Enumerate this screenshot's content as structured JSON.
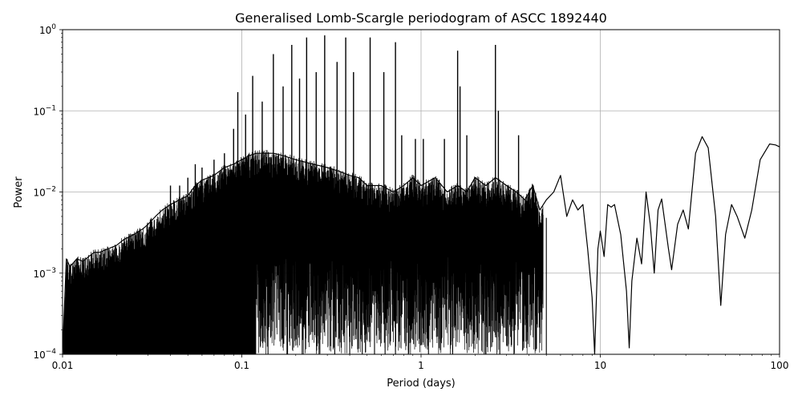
{
  "chart_data": {
    "type": "line",
    "title": "Generalised Lomb-Scargle periodogram of ASCC 1892440",
    "xlabel": "Period (days)",
    "ylabel": "Power",
    "xscale": "log",
    "yscale": "log",
    "xlim": [
      0.01,
      100
    ],
    "ylim": [
      0.0001,
      1
    ],
    "grid": true,
    "line_color": "#000000",
    "x_ticks": [
      {
        "value": 0.01,
        "label": "0.01"
      },
      {
        "value": 0.1,
        "label": "0.1"
      },
      {
        "value": 1,
        "label": "1"
      },
      {
        "value": 10,
        "label": "10"
      },
      {
        "value": 100,
        "label": "100"
      }
    ],
    "y_ticks": [
      {
        "value": 0.0001,
        "base": "10",
        "exp": "−4"
      },
      {
        "value": 0.001,
        "base": "10",
        "exp": "−3"
      },
      {
        "value": 0.01,
        "base": "10",
        "exp": "−2"
      },
      {
        "value": 0.1,
        "base": "10",
        "exp": "−1"
      },
      {
        "value": 1,
        "base": "10",
        "exp": "0"
      }
    ],
    "series": [
      {
        "points": [
          [
            0.01,
            0.0001
          ],
          [
            0.0105,
            0.0015
          ],
          [
            0.011,
            0.0012
          ],
          [
            0.012,
            0.0015
          ],
          [
            0.013,
            0.0014
          ],
          [
            0.014,
            0.0016
          ],
          [
            0.015,
            0.0018
          ],
          [
            0.016,
            0.0018
          ],
          [
            0.018,
            0.002
          ],
          [
            0.02,
            0.0022
          ],
          [
            0.022,
            0.0026
          ],
          [
            0.025,
            0.003
          ],
          [
            0.028,
            0.0035
          ],
          [
            0.03,
            0.004
          ],
          [
            0.033,
            0.005
          ],
          [
            0.036,
            0.006
          ],
          [
            0.04,
            0.007
          ],
          [
            0.045,
            0.008
          ],
          [
            0.05,
            0.009
          ],
          [
            0.055,
            0.012
          ],
          [
            0.06,
            0.014
          ],
          [
            0.065,
            0.015
          ],
          [
            0.07,
            0.016
          ],
          [
            0.075,
            0.018
          ],
          [
            0.08,
            0.02
          ],
          [
            0.09,
            0.022
          ],
          [
            0.1,
            0.025
          ],
          [
            0.11,
            0.028
          ],
          [
            0.12,
            0.03
          ],
          [
            0.13,
            0.03
          ],
          [
            0.15,
            0.03
          ],
          [
            0.17,
            0.028
          ],
          [
            0.2,
            0.025
          ],
          [
            0.25,
            0.022
          ],
          [
            0.3,
            0.02
          ],
          [
            0.35,
            0.018
          ],
          [
            0.4,
            0.016
          ],
          [
            0.45,
            0.015
          ],
          [
            0.5,
            0.012
          ],
          [
            0.6,
            0.012
          ],
          [
            0.7,
            0.01
          ],
          [
            0.8,
            0.012
          ],
          [
            0.9,
            0.015
          ],
          [
            1.0,
            0.012
          ],
          [
            1.2,
            0.015
          ],
          [
            1.4,
            0.01
          ],
          [
            1.6,
            0.012
          ],
          [
            1.8,
            0.01
          ],
          [
            2.0,
            0.015
          ],
          [
            2.3,
            0.012
          ],
          [
            2.6,
            0.015
          ],
          [
            3.0,
            0.012
          ],
          [
            3.4,
            0.01
          ],
          [
            3.8,
            0.008
          ],
          [
            4.2,
            0.012
          ],
          [
            4.6,
            0.006
          ],
          [
            5.0,
            0.008
          ],
          [
            5.5,
            0.01
          ],
          [
            6.0,
            0.016
          ],
          [
            6.5,
            0.005
          ],
          [
            7.0,
            0.008
          ],
          [
            7.5,
            0.006
          ],
          [
            8.0,
            0.007
          ],
          [
            8.5,
            0.002
          ],
          [
            9.0,
            0.0005
          ],
          [
            9.3,
            0.0001
          ],
          [
            9.7,
            0.002
          ],
          [
            10.0,
            0.0033
          ],
          [
            10.5,
            0.0016
          ],
          [
            11.0,
            0.007
          ],
          [
            11.5,
            0.0065
          ],
          [
            12.0,
            0.007
          ],
          [
            13.0,
            0.003
          ],
          [
            14.0,
            0.0006
          ],
          [
            14.5,
            0.00012
          ],
          [
            15.0,
            0.0008
          ],
          [
            16.0,
            0.0027
          ],
          [
            17.0,
            0.0013
          ],
          [
            18.0,
            0.01
          ],
          [
            19.0,
            0.004
          ],
          [
            20.0,
            0.001
          ],
          [
            21.0,
            0.006
          ],
          [
            22.0,
            0.0082
          ],
          [
            24.0,
            0.002
          ],
          [
            25.0,
            0.0011
          ],
          [
            27.0,
            0.004
          ],
          [
            29.0,
            0.006
          ],
          [
            31.0,
            0.0035
          ],
          [
            34.0,
            0.03
          ],
          [
            37.0,
            0.048
          ],
          [
            40.0,
            0.035
          ],
          [
            44.0,
            0.005
          ],
          [
            47.0,
            0.0004
          ],
          [
            50.0,
            0.003
          ],
          [
            54.0,
            0.007
          ],
          [
            58.0,
            0.005
          ],
          [
            64.0,
            0.0027
          ],
          [
            70.0,
            0.006
          ],
          [
            78.0,
            0.025
          ],
          [
            88.0,
            0.039
          ],
          [
            95.0,
            0.038
          ],
          [
            100.0,
            0.036
          ]
        ]
      }
    ],
    "peaks": [
      [
        0.04,
        0.012
      ],
      [
        0.045,
        0.012
      ],
      [
        0.05,
        0.015
      ],
      [
        0.055,
        0.022
      ],
      [
        0.06,
        0.02
      ],
      [
        0.07,
        0.025
      ],
      [
        0.08,
        0.03
      ],
      [
        0.09,
        0.06
      ],
      [
        0.095,
        0.17
      ],
      [
        0.105,
        0.09
      ],
      [
        0.115,
        0.27
      ],
      [
        0.13,
        0.13
      ],
      [
        0.15,
        0.5
      ],
      [
        0.17,
        0.2
      ],
      [
        0.19,
        0.65
      ],
      [
        0.21,
        0.25
      ],
      [
        0.23,
        0.8
      ],
      [
        0.26,
        0.3
      ],
      [
        0.29,
        0.85
      ],
      [
        0.34,
        0.4
      ],
      [
        0.38,
        0.8
      ],
      [
        0.42,
        0.3
      ],
      [
        0.52,
        0.8
      ],
      [
        0.62,
        0.3
      ],
      [
        0.72,
        0.7
      ],
      [
        0.78,
        0.05
      ],
      [
        0.93,
        0.045
      ],
      [
        1.03,
        0.045
      ],
      [
        1.35,
        0.045
      ],
      [
        1.6,
        0.55
      ],
      [
        1.65,
        0.2
      ],
      [
        1.8,
        0.05
      ],
      [
        2.6,
        0.65
      ],
      [
        2.7,
        0.1
      ],
      [
        3.5,
        0.05
      ]
    ],
    "dips": [
      [
        0.14,
        0.0001
      ],
      [
        0.18,
        0.0001
      ],
      [
        0.22,
        0.0001
      ],
      [
        0.27,
        0.0001
      ],
      [
        0.33,
        0.0001
      ],
      [
        0.4,
        0.0001
      ],
      [
        0.47,
        0.0001
      ],
      [
        0.55,
        0.0001
      ],
      [
        0.63,
        0.0001
      ],
      [
        0.72,
        0.0001
      ],
      [
        0.85,
        0.0001
      ],
      [
        1.1,
        0.0001
      ],
      [
        1.5,
        0.0001
      ],
      [
        1.9,
        0.0002
      ],
      [
        2.3,
        0.0001
      ],
      [
        2.75,
        0.0001
      ],
      [
        3.3,
        0.0001
      ],
      [
        5.0,
        0.0001
      ]
    ]
  }
}
